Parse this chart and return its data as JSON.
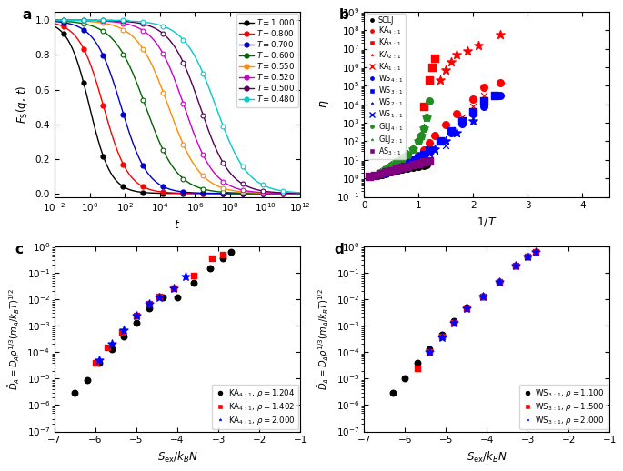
{
  "panel_a": {
    "temperatures": [
      1.0,
      0.8,
      0.7,
      0.6,
      0.55,
      0.52,
      0.5,
      0.48
    ],
    "colors": [
      "black",
      "red",
      "#0000cc",
      "#006400",
      "#ff8c00",
      "#cc00cc",
      "#550055",
      "#00cccc"
    ],
    "t_centers": [
      0.0,
      0.8,
      1.8,
      3.2,
      4.5,
      5.4,
      6.3,
      7.2
    ],
    "widths": [
      0.6,
      0.7,
      0.75,
      0.9,
      0.9,
      0.85,
      0.85,
      0.9
    ],
    "plateaus": [
      0.0,
      0.0,
      0.0,
      0.82,
      0.82,
      0.82,
      0.82,
      0.82
    ]
  },
  "panel_b": {
    "xlim": [
      0.0,
      4.5
    ],
    "ylim_log": [
      -1,
      9
    ],
    "series": [
      {
        "label": "SCLJ",
        "color": "black",
        "marker": "o",
        "x": [
          0.25,
          0.33,
          0.4,
          0.5,
          0.6,
          0.7,
          0.8,
          0.9,
          1.0,
          1.1,
          1.15
        ],
        "y": [
          1.5,
          1.7,
          1.9,
          2.2,
          2.5,
          3.0,
          3.5,
          4.0,
          4.5,
          5.0,
          5.5
        ]
      },
      {
        "label": "KA4:1",
        "color": "red",
        "marker": "o",
        "x": [
          0.6,
          0.7,
          0.8,
          0.9,
          1.0,
          1.1,
          1.2,
          1.3,
          1.5,
          1.7,
          2.0,
          2.2,
          2.5
        ],
        "y": [
          3,
          4,
          6,
          10,
          18,
          35,
          80,
          200,
          800,
          3000,
          20000,
          80000,
          150000
        ]
      },
      {
        "label": "KA3:1",
        "color": "red",
        "marker": "s",
        "x": [
          1.1,
          1.2,
          1.25,
          1.3
        ],
        "y": [
          8000,
          200000,
          1000000,
          3000000
        ]
      },
      {
        "label": "KA2:1",
        "color": "red",
        "marker": "*",
        "x": [
          1.4,
          1.5,
          1.6,
          1.7,
          1.9,
          2.1,
          2.5
        ],
        "y": [
          200000,
          700000,
          2000000,
          5000000,
          8000000,
          15000000,
          60000000
        ]
      },
      {
        "label": "KA1:1",
        "color": "red",
        "marker": "x",
        "x": [
          0.8,
          0.9,
          1.0,
          1.1,
          1.2,
          1.4,
          1.6,
          1.8,
          2.0,
          2.2
        ],
        "y": [
          4,
          6,
          10,
          18,
          30,
          100,
          400,
          2000,
          8000,
          30000
        ]
      },
      {
        "label": "WS4:1",
        "color": "blue",
        "marker": "o",
        "x": [
          0.4,
          0.5,
          0.6,
          0.7,
          0.8,
          0.9,
          1.0,
          1.1,
          1.2,
          1.4,
          1.6,
          1.8,
          2.0,
          2.2,
          2.5
        ],
        "y": [
          2,
          3,
          4,
          5,
          8,
          10,
          15,
          20,
          35,
          100,
          300,
          900,
          3000,
          8000,
          30000
        ]
      },
      {
        "label": "WS3:1",
        "color": "blue",
        "marker": "s",
        "x": [
          0.6,
          0.7,
          0.8,
          0.9,
          1.0,
          1.1,
          1.2,
          1.4,
          1.6,
          1.8,
          2.0,
          2.2,
          2.4
        ],
        "y": [
          3,
          4,
          6,
          8,
          12,
          20,
          35,
          100,
          350,
          1200,
          4000,
          15000,
          30000
        ]
      },
      {
        "label": "WS2:1",
        "color": "blue",
        "marker": "*",
        "x": [
          0.4,
          0.5,
          0.6,
          0.7,
          0.8,
          0.9,
          1.0,
          1.1,
          1.2,
          1.3,
          1.5,
          1.7,
          2.0
        ],
        "y": [
          2,
          3,
          4,
          5,
          7,
          9,
          12,
          18,
          25,
          40,
          100,
          300,
          1200
        ]
      },
      {
        "label": "WS1:1",
        "color": "blue",
        "marker": "x",
        "x": [
          0.3,
          0.4,
          0.5,
          0.6,
          0.7,
          0.8,
          0.9,
          1.0,
          1.1,
          1.2,
          1.3,
          1.5
        ],
        "y": [
          2,
          3,
          4,
          5,
          6,
          8,
          10,
          13,
          17,
          22,
          30,
          60
        ]
      },
      {
        "label": "GLJ4:1",
        "color": "#228B22",
        "marker": "o",
        "x": [
          0.3,
          0.4,
          0.5,
          0.6,
          0.7,
          0.8,
          0.9,
          1.0,
          1.05,
          1.1,
          1.15,
          1.2
        ],
        "y": [
          2,
          3,
          5,
          8,
          12,
          20,
          40,
          100,
          200,
          500,
          2000,
          15000
        ]
      },
      {
        "label": "GLJ2:1",
        "color": "#228B22",
        "marker": "*",
        "x": [
          0.3,
          0.4,
          0.5,
          0.6,
          0.7,
          0.8,
          0.9,
          1.0,
          1.05,
          1.1,
          1.15
        ],
        "y": [
          2,
          3,
          5,
          8,
          12,
          20,
          40,
          100,
          200,
          500,
          2000
        ]
      },
      {
        "label": "AS3:1",
        "color": "#800080",
        "marker": "s",
        "x": [
          0.1,
          0.2,
          0.3,
          0.4,
          0.5,
          0.6,
          0.7,
          0.8,
          0.9,
          1.0,
          1.1,
          1.2
        ],
        "y": [
          1.3,
          1.5,
          1.8,
          2.2,
          2.6,
          3.2,
          3.8,
          4.5,
          5.5,
          6.5,
          7.5,
          9.0
        ]
      }
    ]
  },
  "panel_c": {
    "xlim": [
      -7.0,
      -1.0
    ],
    "ylim_log": [
      -7,
      0
    ],
    "series": [
      {
        "label": "KA4:1, rho=1.204",
        "color": "black",
        "marker": "o",
        "x": [
          -6.5,
          -6.2,
          -5.9,
          -5.6,
          -5.3,
          -5.0,
          -4.7,
          -4.35,
          -4.0,
          -3.6,
          -3.2,
          -2.9,
          -2.7
        ],
        "y": [
          3e-06,
          9e-06,
          4e-05,
          0.00013,
          0.0004,
          0.0013,
          0.0045,
          0.012,
          0.012,
          0.04,
          0.15,
          0.35,
          0.6
        ]
      },
      {
        "label": "KA4:1, rho=1.402",
        "color": "red",
        "marker": "s",
        "x": [
          -6.0,
          -5.7,
          -5.35,
          -5.0,
          -4.7,
          -4.45,
          -4.1,
          -3.6,
          -3.15,
          -2.9
        ],
        "y": [
          4e-05,
          0.00015,
          0.0006,
          0.0025,
          0.007,
          0.013,
          0.025,
          0.08,
          0.35,
          0.5
        ]
      },
      {
        "label": "KA4:1, rho=2.000",
        "color": "blue",
        "marker": "*",
        "x": [
          -5.9,
          -5.6,
          -5.3,
          -5.0,
          -4.7,
          -4.45,
          -4.1,
          -3.8
        ],
        "y": [
          5e-05,
          0.0002,
          0.0007,
          0.0025,
          0.007,
          0.012,
          0.025,
          0.07
        ]
      }
    ]
  },
  "panel_d": {
    "xlim": [
      -7.0,
      -1.0
    ],
    "ylim_log": [
      -7,
      0
    ],
    "series": [
      {
        "label": "WS3:1, rho=1.100",
        "color": "black",
        "marker": "o",
        "x": [
          -6.3,
          -6.0,
          -5.7,
          -5.4,
          -5.1,
          -4.8,
          -4.5,
          -4.1,
          -3.7,
          -3.3,
          -3.0
        ],
        "y": [
          3e-06,
          1e-05,
          4e-05,
          0.00013,
          0.00045,
          0.0015,
          0.005,
          0.013,
          0.045,
          0.18,
          0.4
        ]
      },
      {
        "label": "WS3:1, rho=1.500",
        "color": "red",
        "marker": "s",
        "x": [
          -5.7,
          -5.4,
          -5.1,
          -4.8,
          -4.5,
          -4.1,
          -3.7,
          -3.3,
          -3.0,
          -2.8
        ],
        "y": [
          2.5e-05,
          0.0001,
          0.0004,
          0.0013,
          0.0045,
          0.013,
          0.045,
          0.18,
          0.4,
          0.6
        ]
      },
      {
        "label": "WS3:1, rho=2.000",
        "color": "blue",
        "marker": "*",
        "x": [
          -5.4,
          -5.1,
          -4.8,
          -4.5,
          -4.1,
          -3.7,
          -3.3,
          -3.0,
          -2.8
        ],
        "y": [
          0.0001,
          0.00035,
          0.0013,
          0.0045,
          0.013,
          0.045,
          0.18,
          0.4,
          0.6
        ]
      }
    ]
  }
}
